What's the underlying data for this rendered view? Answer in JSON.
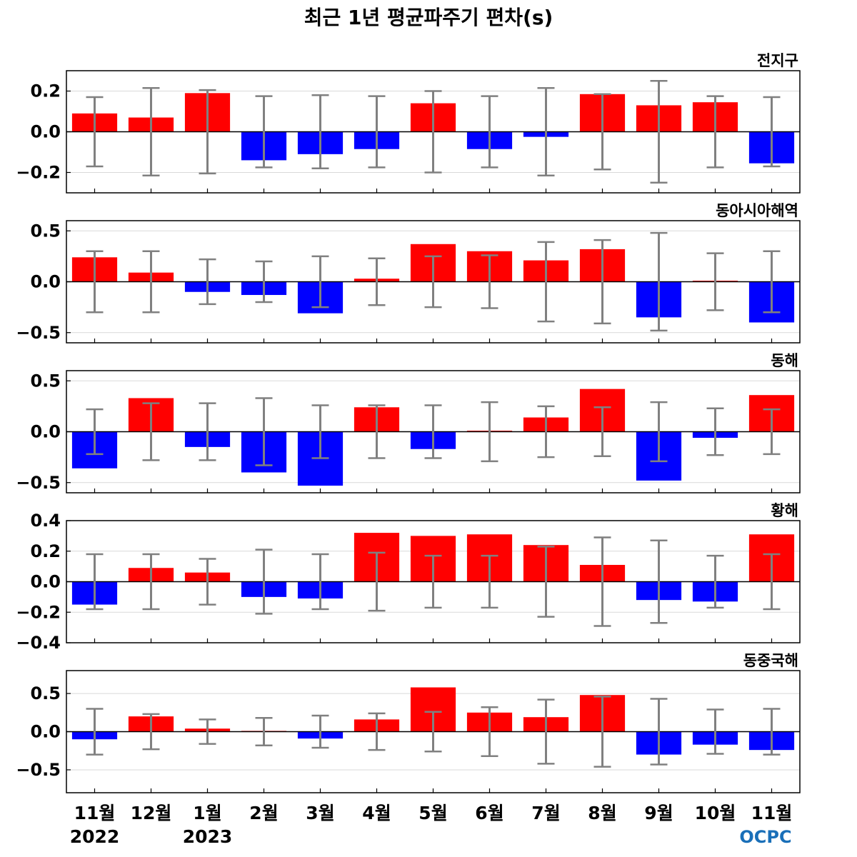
{
  "title": "최근 1년 평균파주기 편차(s)",
  "logo_text": "OCPC",
  "colors": {
    "positive": "#ff0000",
    "negative": "#0000ff",
    "error_bar": "#808080",
    "grid": "#d9d9d9",
    "logo": "#1a6fb8"
  },
  "chart_data": {
    "type": "bar",
    "categories": [
      "11월",
      "12월",
      "1월",
      "2월",
      "3월",
      "4월",
      "5월",
      "6월",
      "7월",
      "8월",
      "9월",
      "10월",
      "11월"
    ],
    "year_labels": [
      {
        "index": 0,
        "label": "2022"
      },
      {
        "index": 2,
        "label": "2023"
      }
    ],
    "panels": [
      {
        "label": "전지구",
        "ylim": [
          -0.3,
          0.3
        ],
        "yticks": [
          -0.2,
          0.0,
          0.2
        ],
        "ytick_labels": [
          "−0.2",
          "0.0",
          "0.2"
        ],
        "values": [
          0.09,
          0.07,
          0.19,
          -0.14,
          -0.11,
          -0.085,
          0.14,
          -0.085,
          -0.025,
          0.185,
          0.13,
          0.145,
          -0.155
        ],
        "errors": [
          0.17,
          0.215,
          0.205,
          0.175,
          0.18,
          0.175,
          0.2,
          0.175,
          0.215,
          0.185,
          0.25,
          0.175,
          0.17
        ]
      },
      {
        "label": "동아시아해역",
        "ylim": [
          -0.6,
          0.6
        ],
        "yticks": [
          -0.5,
          0.0,
          0.5
        ],
        "ytick_labels": [
          "−0.5",
          "0.0",
          "0.5"
        ],
        "values": [
          0.24,
          0.09,
          -0.1,
          -0.13,
          -0.31,
          0.03,
          0.37,
          0.3,
          0.21,
          0.32,
          -0.35,
          0.01,
          -0.4
        ],
        "errors": [
          0.3,
          0.3,
          0.22,
          0.2,
          0.25,
          0.23,
          0.25,
          0.26,
          0.39,
          0.41,
          0.48,
          0.28,
          0.3
        ]
      },
      {
        "label": "동해",
        "ylim": [
          -0.6,
          0.6
        ],
        "yticks": [
          -0.5,
          0.0,
          0.5
        ],
        "ytick_labels": [
          "−0.5",
          "0.0",
          "0.5"
        ],
        "values": [
          -0.36,
          0.33,
          -0.15,
          -0.4,
          -0.53,
          0.24,
          -0.17,
          0.01,
          0.14,
          0.42,
          -0.48,
          -0.06,
          0.36
        ],
        "errors": [
          0.22,
          0.28,
          0.28,
          0.33,
          0.26,
          0.26,
          0.26,
          0.29,
          0.25,
          0.24,
          0.29,
          0.23,
          0.22
        ]
      },
      {
        "label": "황해",
        "ylim": [
          -0.4,
          0.4
        ],
        "yticks": [
          -0.4,
          -0.2,
          0.0,
          0.2,
          0.4
        ],
        "ytick_labels": [
          "−0.4",
          "−0.2",
          "0.0",
          "0.2",
          "0.4"
        ],
        "values": [
          -0.15,
          0.09,
          0.06,
          -0.1,
          -0.11,
          0.32,
          0.3,
          0.31,
          0.24,
          0.11,
          -0.12,
          -0.13,
          0.31
        ],
        "errors": [
          0.18,
          0.18,
          0.15,
          0.21,
          0.18,
          0.19,
          0.17,
          0.17,
          0.23,
          0.29,
          0.27,
          0.17,
          0.18
        ]
      },
      {
        "label": "동중국해",
        "ylim": [
          -0.8,
          0.8
        ],
        "yticks": [
          -0.5,
          0.0,
          0.5
        ],
        "ytick_labels": [
          "−0.5",
          "0.0",
          "0.5"
        ],
        "values": [
          -0.1,
          0.2,
          0.04,
          0.01,
          -0.09,
          0.16,
          0.58,
          0.25,
          0.19,
          0.48,
          -0.3,
          -0.17,
          -0.24
        ],
        "errors": [
          0.3,
          0.23,
          0.16,
          0.18,
          0.21,
          0.24,
          0.26,
          0.32,
          0.42,
          0.46,
          0.43,
          0.29,
          0.3
        ]
      }
    ]
  }
}
